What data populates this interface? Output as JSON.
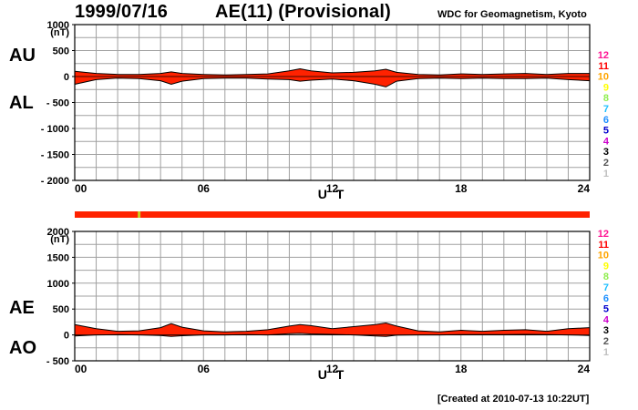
{
  "header": {
    "date": "1999/07/16",
    "title": "AE(11) (Provisional)",
    "organization": "WDC for Geomagnetism, Kyoto"
  },
  "footer": {
    "created": "[Created at 2010-07-13 10:22UT]"
  },
  "colors": {
    "fill": "#ff2200",
    "outline": "#000000",
    "grid": "#a0a0a0",
    "status_bar": "#ff2200",
    "status_marker": "#c8d020",
    "stations": [
      "#ff1493",
      "#ff0000",
      "#ffa500",
      "#ffff00",
      "#90ee50",
      "#20c0ff",
      "#1e90ff",
      "#0000cd",
      "#cc00cc",
      "#000000",
      "#555555",
      "#c0c0c0"
    ]
  },
  "station_legend": [
    "12",
    "11",
    "10",
    "9",
    "8",
    "7",
    "6",
    "5",
    "4",
    "3",
    "2",
    "1"
  ],
  "status_bar": {
    "marker_hour": 3.0
  },
  "chart_data": [
    {
      "type": "area",
      "panel": "AU/AL",
      "labels_top": "AU",
      "labels_bottom": "AL",
      "xlabel": "U T",
      "x_ticks": [
        "00",
        "06",
        "12",
        "18",
        "24"
      ],
      "xlim": [
        0,
        24
      ],
      "ylim": [
        -2000,
        1000
      ],
      "y_ticks": [
        1000,
        500,
        0,
        -500,
        -1000,
        -1500,
        -2000
      ],
      "y_tick_labels": [
        "1000",
        "500",
        "0",
        "- 500",
        "- 1000",
        "- 1500",
        "- 2000"
      ],
      "unit": "(nT)",
      "grid": true,
      "x": [
        0,
        1,
        2,
        3,
        4,
        4.5,
        5,
        6,
        7,
        8,
        9,
        10,
        10.5,
        11,
        12,
        13,
        14,
        14.5,
        15,
        16,
        17,
        18,
        19,
        20,
        21,
        22,
        23,
        24
      ],
      "series": [
        {
          "name": "AU",
          "values": [
            100,
            60,
            40,
            40,
            60,
            90,
            60,
            40,
            30,
            40,
            50,
            110,
            150,
            110,
            70,
            80,
            110,
            140,
            80,
            40,
            30,
            50,
            40,
            50,
            60,
            40,
            60,
            60
          ]
        },
        {
          "name": "AL",
          "values": [
            -150,
            -60,
            -30,
            -40,
            -80,
            -150,
            -90,
            -40,
            -30,
            -30,
            -50,
            -60,
            -90,
            -70,
            -50,
            -80,
            -150,
            -200,
            -90,
            -40,
            -30,
            -40,
            -30,
            -40,
            -40,
            -30,
            -60,
            -80
          ]
        }
      ]
    },
    {
      "type": "area",
      "panel": "AE/AO",
      "labels_top": "AE",
      "labels_bottom": "AO",
      "xlabel": "U T",
      "x_ticks": [
        "00",
        "06",
        "12",
        "18",
        "24"
      ],
      "xlim": [
        0,
        24
      ],
      "ylim": [
        -500,
        2000
      ],
      "y_ticks": [
        2000,
        1500,
        1000,
        500,
        0,
        -500
      ],
      "y_tick_labels": [
        "2000",
        "1500",
        "1000",
        "500",
        "0",
        "- 500"
      ],
      "unit": "(nT)",
      "grid": true,
      "x": [
        0,
        1,
        2,
        3,
        4,
        4.5,
        5,
        6,
        7,
        8,
        9,
        10,
        10.5,
        11,
        12,
        13,
        14,
        14.5,
        15,
        16,
        17,
        18,
        19,
        20,
        21,
        22,
        23,
        24
      ],
      "series": [
        {
          "name": "AE",
          "values": [
            200,
            120,
            70,
            80,
            140,
            220,
            150,
            80,
            60,
            70,
            100,
            170,
            200,
            180,
            120,
            160,
            200,
            230,
            170,
            80,
            60,
            90,
            70,
            90,
            100,
            70,
            120,
            140
          ]
        },
        {
          "name": "AO",
          "values": [
            -20,
            0,
            5,
            0,
            -10,
            -30,
            -15,
            0,
            0,
            5,
            0,
            25,
            30,
            20,
            10,
            0,
            -20,
            -30,
            -5,
            0,
            0,
            5,
            5,
            5,
            10,
            5,
            0,
            -10
          ]
        }
      ]
    }
  ]
}
